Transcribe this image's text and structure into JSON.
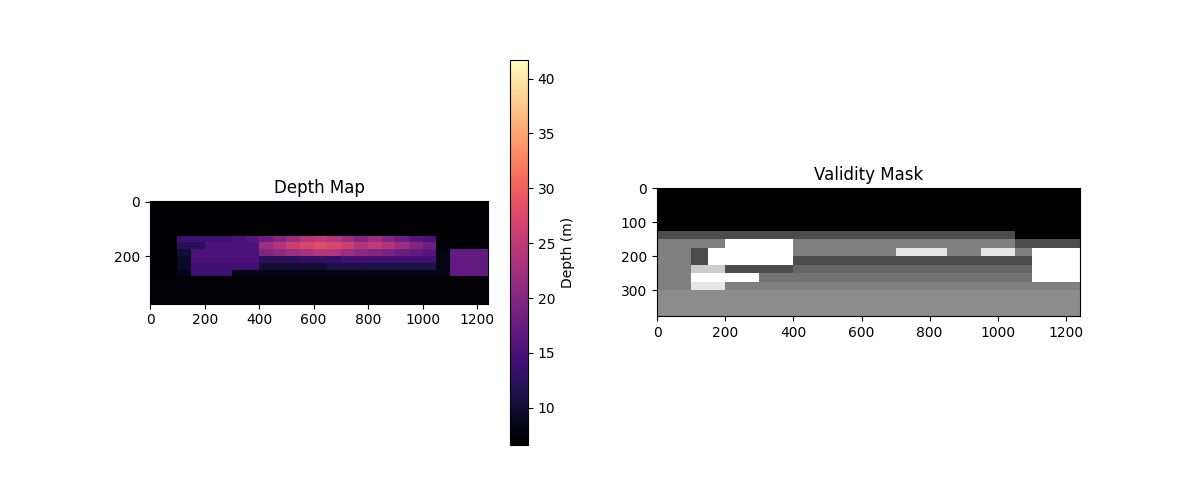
{
  "chart_data": [
    {
      "type": "heatmap",
      "title": "Depth Map",
      "x": [
        25,
        75,
        125,
        175,
        225,
        275,
        325,
        375,
        425,
        475,
        525,
        575,
        625,
        675,
        725,
        775,
        825,
        875,
        925,
        975,
        1025,
        1075,
        1125,
        1175,
        1225
      ],
      "y": [
        12.5,
        37.5,
        62.5,
        87.5,
        112.5,
        137.5,
        162.5,
        187.5,
        212.5,
        237.5,
        262.5,
        287.5,
        312.5,
        337.5,
        362.5
      ],
      "cells": [
        [
          6.6,
          6.6,
          6.6,
          6.6,
          6.6,
          6.6,
          6.6,
          6.6,
          6.6,
          6.6,
          6.6,
          6.6,
          6.6,
          6.6,
          6.6,
          6.6,
          6.6,
          6.6,
          6.6,
          6.6,
          6.6,
          6.6,
          6.6,
          6.6,
          6.6
        ],
        [
          6.6,
          6.6,
          6.6,
          6.6,
          6.6,
          6.6,
          6.6,
          6.6,
          6.6,
          6.6,
          6.6,
          6.6,
          6.6,
          6.6,
          6.6,
          6.6,
          6.6,
          6.6,
          6.6,
          6.6,
          6.6,
          6.6,
          6.6,
          6.6,
          6.6
        ],
        [
          6.6,
          6.6,
          6.6,
          6.6,
          6.6,
          6.6,
          6.6,
          6.6,
          6.6,
          6.6,
          6.6,
          6.6,
          6.6,
          6.6,
          6.6,
          6.6,
          6.6,
          6.6,
          6.6,
          6.6,
          6.6,
          6.6,
          6.6,
          6.6,
          6.6
        ],
        [
          6.6,
          6.6,
          6.6,
          6.6,
          6.6,
          6.6,
          6.6,
          6.6,
          6.6,
          6.6,
          6.6,
          6.6,
          6.6,
          6.6,
          6.6,
          6.6,
          6.6,
          6.6,
          6.6,
          6.6,
          6.6,
          6.6,
          6.6,
          6.6,
          6.6
        ],
        [
          6.6,
          6.6,
          6.6,
          6.6,
          6.6,
          6.6,
          6.6,
          6.6,
          6.6,
          6.6,
          6.6,
          6.6,
          6.6,
          6.6,
          6.6,
          6.6,
          6.6,
          6.6,
          6.6,
          6.6,
          6.6,
          6.6,
          6.6,
          6.6,
          6.6
        ],
        [
          6.6,
          6.6,
          14,
          14,
          14,
          14,
          15,
          16,
          18,
          20,
          22,
          24,
          25,
          24,
          22,
          20,
          22,
          20,
          18,
          16,
          15,
          6.6,
          6.6,
          6.6,
          6.6
        ],
        [
          6.6,
          6.6,
          12,
          12,
          15,
          15,
          15,
          15,
          22,
          24,
          26,
          27,
          28,
          27,
          26,
          24,
          25,
          24,
          22,
          20,
          18,
          6.6,
          6.6,
          6.6,
          6.6
        ],
        [
          6.6,
          6.6,
          10,
          15,
          15,
          15,
          15,
          15,
          20,
          21,
          22,
          23,
          24,
          24,
          22,
          21,
          20,
          19,
          18,
          17,
          16,
          8,
          17,
          17,
          17
        ],
        [
          6.6,
          6.6,
          9,
          15,
          15,
          15,
          15,
          15,
          12,
          12,
          12,
          13,
          13,
          13,
          14,
          14,
          14,
          14,
          14,
          14,
          14,
          8,
          17,
          17,
          17
        ],
        [
          6.6,
          6.6,
          9,
          14,
          14,
          14,
          14,
          14,
          10,
          10,
          10,
          10,
          10,
          11,
          11,
          11,
          11,
          11,
          11,
          11,
          11,
          8,
          17,
          17,
          17
        ],
        [
          6.6,
          6.6,
          8,
          14,
          14,
          14,
          8,
          8,
          8,
          8,
          8,
          8,
          8,
          8,
          8,
          8,
          8,
          8,
          8,
          8,
          8,
          8,
          17,
          17,
          17
        ],
        [
          7,
          7,
          7,
          7,
          7,
          7,
          7,
          7,
          7,
          7,
          7,
          7,
          7,
          7,
          7,
          7,
          7,
          7,
          7,
          7,
          7,
          7,
          7,
          7,
          7
        ],
        [
          7,
          7,
          7,
          7,
          7,
          7,
          7,
          7,
          7,
          7,
          7,
          7,
          7,
          7,
          7,
          7,
          7,
          7,
          7,
          7,
          7,
          7,
          7,
          7,
          7
        ],
        [
          7,
          7,
          7,
          7,
          7,
          7,
          7,
          7,
          7,
          7,
          7,
          7,
          7,
          7,
          7,
          7,
          7,
          7,
          7,
          7,
          7,
          7,
          7,
          7,
          7
        ],
        [
          7,
          7,
          7,
          7,
          7,
          7,
          7,
          7,
          7,
          7,
          7,
          7,
          7,
          7,
          7,
          7,
          7,
          7,
          7,
          7,
          7,
          7,
          7,
          7,
          7
        ]
      ],
      "xlim": [
        -0.5,
        1241.5
      ],
      "ylim": [
        374.5,
        -0.5
      ],
      "xticks": [
        0,
        200,
        400,
        600,
        800,
        1000,
        1200
      ],
      "yticks": [
        0,
        200
      ],
      "colorbar_label": "Depth (m)",
      "colorbar_range": [
        6.6,
        41.7
      ],
      "colorbar_ticks": [
        10,
        15,
        20,
        25,
        30,
        35,
        40
      ]
    },
    {
      "type": "heatmap",
      "title": "Validity Mask",
      "x": [
        25,
        75,
        125,
        175,
        225,
        275,
        325,
        375,
        425,
        475,
        525,
        575,
        625,
        675,
        725,
        775,
        825,
        875,
        925,
        975,
        1025,
        1075,
        1125,
        1175,
        1225
      ],
      "y": [
        12.5,
        37.5,
        62.5,
        87.5,
        112.5,
        137.5,
        162.5,
        187.5,
        212.5,
        237.5,
        262.5,
        287.5,
        312.5,
        337.5,
        362.5
      ],
      "cells": [
        [
          0,
          0,
          0,
          0,
          0,
          0,
          0,
          0,
          0,
          0,
          0,
          0,
          0,
          0,
          0,
          0,
          0,
          0,
          0,
          0,
          0,
          0,
          0,
          0,
          0
        ],
        [
          0,
          0,
          0,
          0,
          0,
          0,
          0,
          0,
          0,
          0,
          0,
          0,
          0,
          0,
          0,
          0,
          0,
          0,
          0,
          0,
          0,
          0,
          0,
          0,
          0
        ],
        [
          0,
          0,
          0,
          0,
          0,
          0,
          0,
          0,
          0,
          0,
          0,
          0,
          0,
          0,
          0,
          0,
          0,
          0,
          0,
          0,
          0,
          0,
          0,
          0,
          0
        ],
        [
          0,
          0,
          0,
          0,
          0,
          0,
          0,
          0,
          0,
          0,
          0,
          0,
          0,
          0,
          0,
          0,
          0,
          0,
          0,
          0,
          0,
          0,
          0,
          0,
          0
        ],
        [
          0,
          0,
          0,
          0,
          0,
          0,
          0,
          0,
          0,
          0,
          0,
          0,
          0,
          0,
          0,
          0,
          0,
          0,
          0,
          0,
          0,
          0,
          0,
          0,
          0
        ],
        [
          0.3,
          0.3,
          0.3,
          0.3,
          0.3,
          0.3,
          0.3,
          0.3,
          0.3,
          0.3,
          0.3,
          0.3,
          0.3,
          0.3,
          0.3,
          0.3,
          0.3,
          0.3,
          0.3,
          0.3,
          0.3,
          0,
          0,
          0,
          0
        ],
        [
          0.5,
          0.5,
          0.5,
          0.5,
          1,
          1,
          1,
          1,
          0.5,
          0.5,
          0.5,
          0.5,
          0.5,
          0.5,
          0.5,
          0.5,
          0.5,
          0.5,
          0.5,
          0.5,
          0.5,
          0.3,
          0.3,
          0.3,
          0.3
        ],
        [
          0.5,
          0.5,
          0.3,
          1,
          1,
          1,
          1,
          1,
          0.5,
          0.5,
          0.5,
          0.5,
          0.5,
          0.5,
          0.9,
          0.9,
          0.9,
          0.5,
          0.5,
          0.9,
          0.9,
          0.5,
          1,
          1,
          1
        ],
        [
          0.5,
          0.5,
          0.3,
          1,
          1,
          1,
          1,
          1,
          0.3,
          0.3,
          0.3,
          0.3,
          0.3,
          0.3,
          0.3,
          0.3,
          0.3,
          0.3,
          0.3,
          0.3,
          0.3,
          0.3,
          1,
          1,
          1
        ],
        [
          0.5,
          0.5,
          0.8,
          0.8,
          0.3,
          0.3,
          0.3,
          0.3,
          0.4,
          0.4,
          0.4,
          0.4,
          0.4,
          0.4,
          0.4,
          0.4,
          0.4,
          0.4,
          0.4,
          0.4,
          0.4,
          0.4,
          1,
          1,
          1
        ],
        [
          0.5,
          0.5,
          1,
          1,
          1,
          1,
          0.45,
          0.45,
          0.45,
          0.45,
          0.45,
          0.45,
          0.45,
          0.45,
          0.45,
          0.45,
          0.45,
          0.45,
          0.45,
          0.45,
          0.45,
          0.45,
          1,
          1,
          1
        ],
        [
          0.5,
          0.5,
          0.9,
          0.9,
          0.5,
          0.5,
          0.5,
          0.5,
          0.5,
          0.5,
          0.5,
          0.5,
          0.5,
          0.5,
          0.5,
          0.5,
          0.5,
          0.5,
          0.5,
          0.5,
          0.5,
          0.5,
          0.5,
          0.5,
          0.5
        ],
        [
          0.55,
          0.55,
          0.55,
          0.55,
          0.55,
          0.55,
          0.55,
          0.55,
          0.55,
          0.55,
          0.55,
          0.55,
          0.55,
          0.55,
          0.55,
          0.55,
          0.55,
          0.55,
          0.55,
          0.55,
          0.55,
          0.55,
          0.55,
          0.55,
          0.55
        ],
        [
          0.55,
          0.55,
          0.55,
          0.55,
          0.55,
          0.55,
          0.55,
          0.55,
          0.55,
          0.55,
          0.55,
          0.55,
          0.55,
          0.55,
          0.55,
          0.55,
          0.55,
          0.55,
          0.55,
          0.55,
          0.55,
          0.55,
          0.55,
          0.55,
          0.55
        ],
        [
          0.55,
          0.55,
          0.55,
          0.55,
          0.55,
          0.55,
          0.55,
          0.55,
          0.55,
          0.55,
          0.55,
          0.55,
          0.55,
          0.55,
          0.55,
          0.55,
          0.55,
          0.55,
          0.55,
          0.55,
          0.55,
          0.55,
          0.55,
          0.55,
          0.55
        ]
      ],
      "xlim": [
        -0.5,
        1241.5
      ],
      "ylim": [
        374.5,
        -0.5
      ],
      "xticks": [
        0,
        200,
        400,
        600,
        800,
        1000,
        1200
      ],
      "yticks": [
        0,
        100,
        200,
        300
      ]
    }
  ]
}
